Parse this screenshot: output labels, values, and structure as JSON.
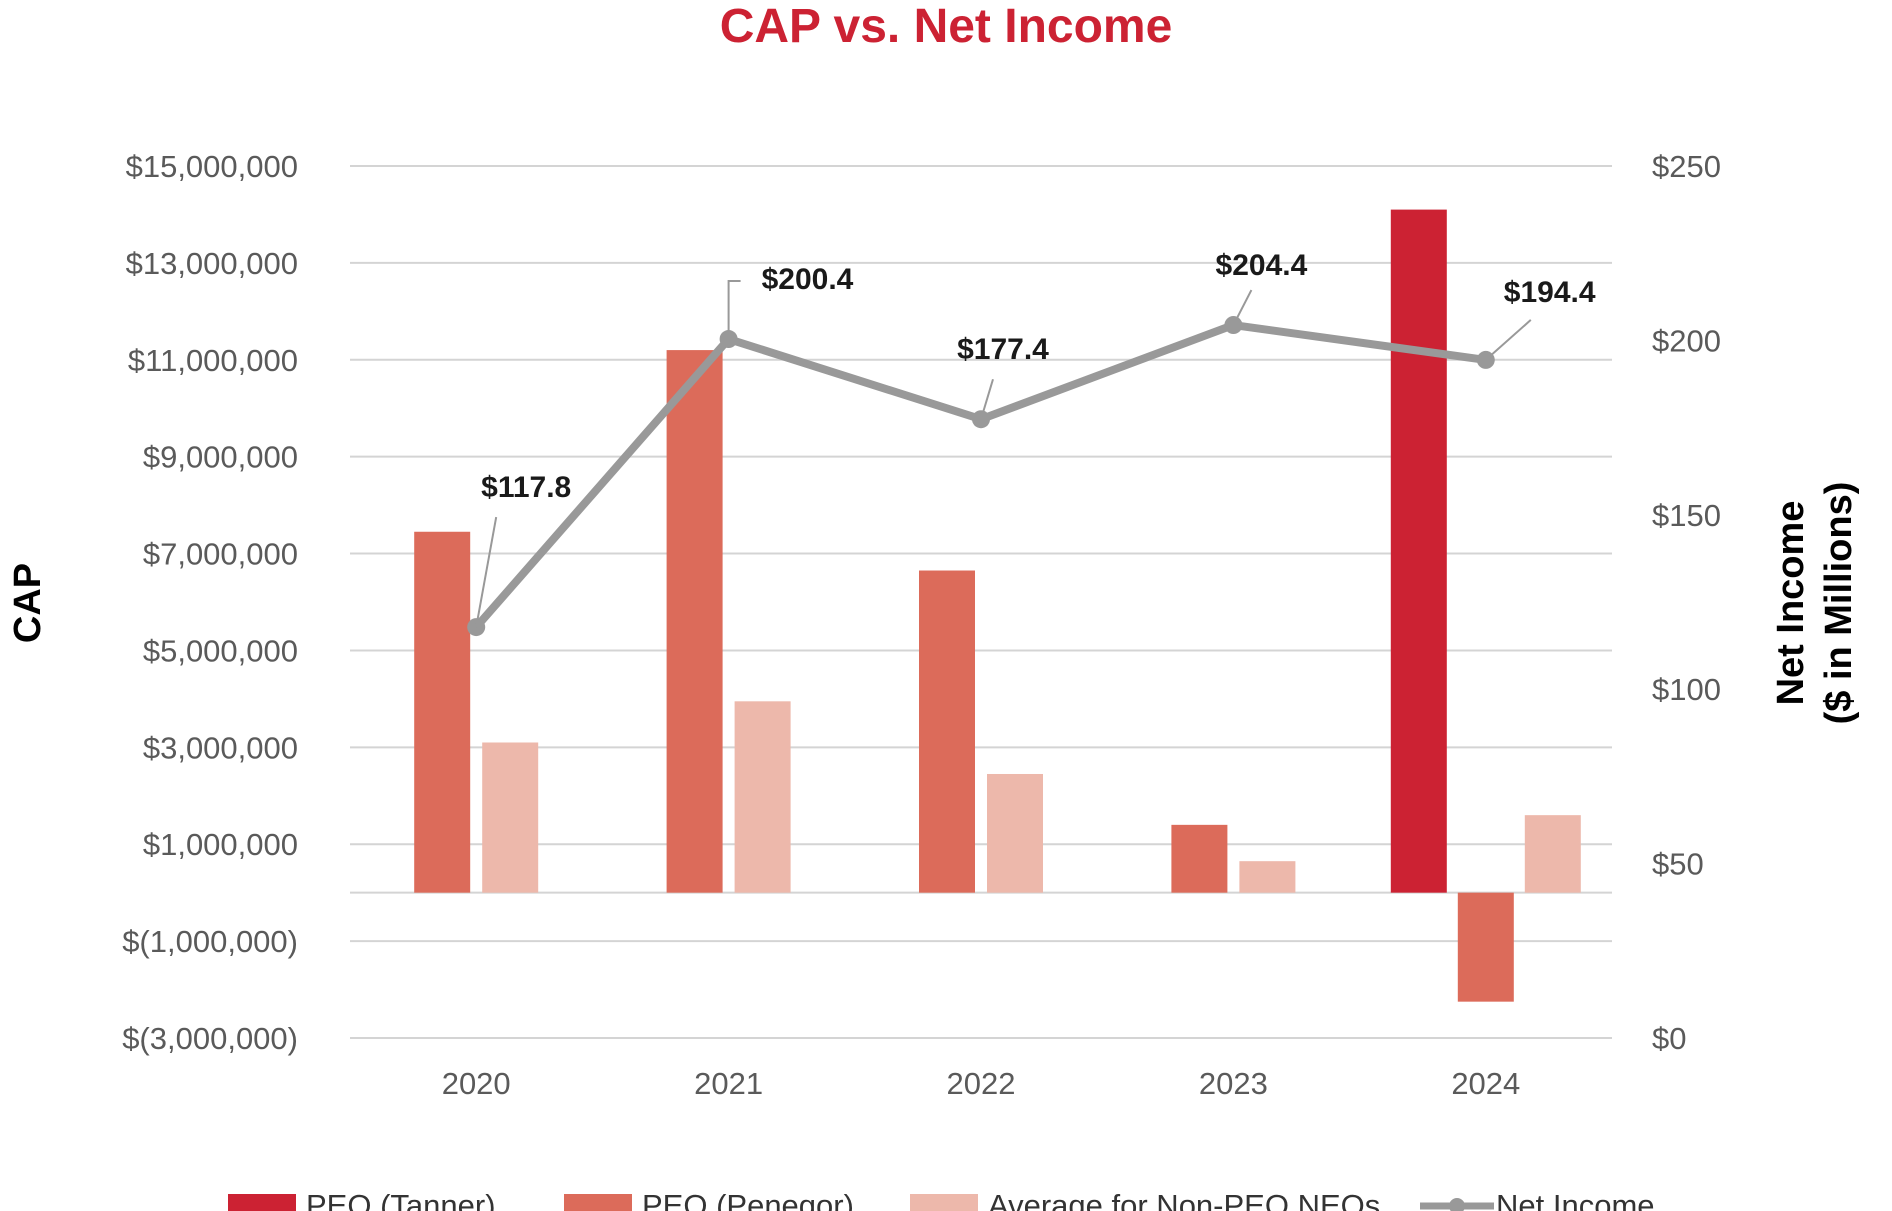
{
  "chart_data": {
    "type": "bar",
    "title": "CAP vs. Net Income",
    "categories": [
      "2020",
      "2021",
      "2022",
      "2023",
      "2024"
    ],
    "ylabel": "CAP",
    "y2label": [
      "Net Income",
      "($ in Millions)"
    ],
    "ylim": [
      -3000000,
      15000000
    ],
    "y2lim": [
      0,
      250
    ],
    "yticks": [
      15000000,
      13000000,
      11000000,
      9000000,
      7000000,
      5000000,
      3000000,
      1000000,
      -1000000,
      -3000000
    ],
    "ytick_labels": [
      "$15,000,000",
      "$13,000,000",
      "$11,000,000",
      "$9,000,000",
      "$7,000,000",
      "$5,000,000",
      "$3,000,000",
      "$1,000,000",
      "$(1,000,000)",
      "$(3,000,000)"
    ],
    "y2ticks": [
      250,
      200,
      150,
      100,
      50,
      0
    ],
    "y2tick_labels": [
      "$250",
      "$200",
      "$150",
      "$100",
      "$50",
      "$0"
    ],
    "grid": true,
    "legend_position": "bottom",
    "series": [
      {
        "name": "PEO (Tanner)",
        "type": "bar",
        "color": "#cc2233",
        "values": [
          null,
          null,
          null,
          null,
          14100000
        ]
      },
      {
        "name": "PEO (Penegor)",
        "type": "bar",
        "color": "#dc6b5a",
        "values": [
          7450000,
          11200000,
          6650000,
          1400000,
          -2250000
        ]
      },
      {
        "name": "Average for Non-PEO NEOs",
        "type": "bar",
        "color": "#edb8ab",
        "values": [
          3100000,
          3950000,
          2450000,
          650000,
          1600000
        ]
      },
      {
        "name": "Net Income",
        "type": "line",
        "axis": "right",
        "color": "#999999",
        "values": [
          117.8,
          200.4,
          177.4,
          204.4,
          194.4
        ]
      }
    ],
    "data_labels": [
      "$117.8",
      "$200.4",
      "$177.4",
      "$204.4",
      "$194.4"
    ]
  }
}
